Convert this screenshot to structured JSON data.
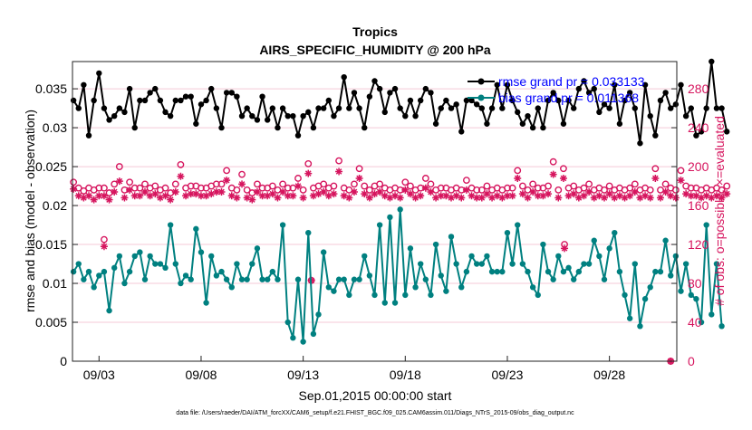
{
  "chart_data": {
    "type": "line",
    "title": "Tropics",
    "subtitle": "AIRS_SPECIFIC_HUMIDITY @ 200 hPa",
    "xlabel": "Sep.01,2015 00:00:00 start",
    "ylabel": "rmse and bias (model - observation)",
    "y2label": "# of obs: o=possible; ×=evaluated",
    "footer": "data file: /Users/raeder/DAI/ATM_forcXX/CAM6_setup/f.e21.FHIST_BGC.f09_025.CAM6assim.011/Diags_NTrS_2015-09/obs_diag_output.nc",
    "xlim": [
      1.7,
      31.3
    ],
    "ylim": [
      0,
      0.0385
    ],
    "y2lim": [
      0,
      308
    ],
    "x_ticks": [
      {
        "value": 3,
        "label": "09/03"
      },
      {
        "value": 8,
        "label": "09/08"
      },
      {
        "value": 13,
        "label": "09/13"
      },
      {
        "value": 18,
        "label": "09/18"
      },
      {
        "value": 23,
        "label": "09/23"
      },
      {
        "value": 28,
        "label": "09/28"
      }
    ],
    "y_ticks": [
      {
        "value": 0,
        "label": "0"
      },
      {
        "value": 0.005,
        "label": "0.005"
      },
      {
        "value": 0.01,
        "label": "0.01"
      },
      {
        "value": 0.015,
        "label": "0.015"
      },
      {
        "value": 0.02,
        "label": "0.02"
      },
      {
        "value": 0.025,
        "label": "0.025"
      },
      {
        "value": 0.03,
        "label": "0.03"
      },
      {
        "value": 0.035,
        "label": "0.035"
      }
    ],
    "y2_ticks": [
      {
        "value": 0,
        "label": "0"
      },
      {
        "value": 40,
        "label": "40"
      },
      {
        "value": 80,
        "label": "80"
      },
      {
        "value": 120,
        "label": "120"
      },
      {
        "value": 160,
        "label": "160"
      },
      {
        "value": 200,
        "label": "200"
      },
      {
        "value": 240,
        "label": "240"
      },
      {
        "value": 280,
        "label": "280"
      }
    ],
    "x_start": 1.75,
    "x_step": 0.25,
    "colors": {
      "rmse": "#000000",
      "bias": "#008080",
      "obs": "#d6155e",
      "legend_text": "#0000ff",
      "grid": "#f4c9d7",
      "axis": "#222222"
    },
    "series": [
      {
        "name": "rmse",
        "legend": "rmse grand pr = 0.033133",
        "values": [
          0.0335,
          0.0325,
          0.0355,
          0.029,
          0.0335,
          0.037,
          0.0325,
          0.031,
          0.0315,
          0.0325,
          0.032,
          0.035,
          0.03,
          0.0335,
          0.0335,
          0.0345,
          0.035,
          0.0335,
          0.032,
          0.0315,
          0.0335,
          0.0335,
          0.034,
          0.034,
          0.0305,
          0.033,
          0.0335,
          0.035,
          0.0325,
          0.03,
          0.0345,
          0.0345,
          0.034,
          0.0315,
          0.0325,
          0.0315,
          0.031,
          0.034,
          0.031,
          0.0325,
          0.03,
          0.0325,
          0.0315,
          0.0315,
          0.029,
          0.0315,
          0.032,
          0.03,
          0.0325,
          0.0325,
          0.0335,
          0.0315,
          0.0325,
          0.0365,
          0.0325,
          0.0345,
          0.0325,
          0.03,
          0.034,
          0.036,
          0.035,
          0.032,
          0.0345,
          0.035,
          0.0325,
          0.0315,
          0.0335,
          0.0315,
          0.0335,
          0.035,
          0.0345,
          0.0305,
          0.0325,
          0.0335,
          0.0325,
          0.033,
          0.0295,
          0.0335,
          0.0335,
          0.033,
          0.0325,
          0.0305,
          0.0325,
          0.0355,
          0.0325,
          0.0355,
          0.0335,
          0.032,
          0.0305,
          0.0315,
          0.03,
          0.0325,
          0.03,
          0.0335,
          0.0345,
          0.0335,
          0.0305,
          0.0335,
          0.0325,
          0.035,
          0.036,
          0.0345,
          0.035,
          0.032,
          0.033,
          0.0325,
          0.0355,
          0.0305,
          0.0335,
          0.0345,
          0.0325,
          0.028,
          0.0355,
          0.0315,
          0.029,
          0.0335,
          0.0345,
          0.0325,
          0.033,
          0.0355,
          0.0315,
          0.0325,
          0.029,
          0.0295,
          0.0325,
          0.0385,
          0.0325,
          0.0325,
          0.0295
        ]
      },
      {
        "name": "bias",
        "legend": "bias grand pr = 0.011368",
        "values": [
          0.0115,
          0.0125,
          0.0105,
          0.0115,
          0.0095,
          0.011,
          0.0115,
          0.0065,
          0.012,
          0.0135,
          0.01,
          0.0115,
          0.0135,
          0.014,
          0.0105,
          0.0135,
          0.0125,
          0.0125,
          0.012,
          0.0175,
          0.0125,
          0.01,
          0.011,
          0.0105,
          0.017,
          0.014,
          0.0075,
          0.0135,
          0.011,
          0.0115,
          0.0105,
          0.0095,
          0.0125,
          0.0105,
          0.0105,
          0.0125,
          0.0145,
          0.0105,
          0.0105,
          0.0115,
          0.0105,
          0.0175,
          0.005,
          0.003,
          0.0105,
          0.0025,
          0.0165,
          0.0035,
          0.006,
          0.014,
          0.0095,
          0.009,
          0.0105,
          0.0105,
          0.0085,
          0.0105,
          0.0105,
          0.0135,
          0.011,
          0.0085,
          0.0175,
          0.0075,
          0.0185,
          0.0075,
          0.0195,
          0.0085,
          0.0145,
          0.0095,
          0.0125,
          0.0105,
          0.0085,
          0.015,
          0.011,
          0.009,
          0.016,
          0.0125,
          0.0095,
          0.0115,
          0.0135,
          0.0125,
          0.0125,
          0.0135,
          0.0115,
          0.0115,
          0.0115,
          0.0165,
          0.0125,
          0.0175,
          0.0125,
          0.0115,
          0.0095,
          0.0085,
          0.015,
          0.0115,
          0.0105,
          0.0135,
          0.0115,
          0.012,
          0.0105,
          0.0115,
          0.0125,
          0.0125,
          0.0155,
          0.0135,
          0.0105,
          0.0145,
          0.0165,
          0.0115,
          0.0085,
          0.0055,
          0.0125,
          0.0045,
          0.008,
          0.0095,
          0.0115,
          0.0115,
          0.0155,
          0.011,
          0.0135,
          0.009,
          0.0125,
          0.0085,
          0.008,
          0.005,
          0.0175,
          0.006,
          0.0125,
          0.0045
        ]
      },
      {
        "name": "possible",
        "legend": "o=possible",
        "values": [
          184,
          178,
          175,
          178,
          176,
          178,
          178,
          173,
          182,
          200,
          176,
          184,
          178,
          178,
          182,
          178,
          180,
          176,
          178,
          173,
          182,
          202,
          178,
          180,
          180,
          178,
          178,
          180,
          182,
          182,
          196,
          178,
          176,
          192,
          176,
          173,
          182,
          178,
          178,
          180,
          176,
          182,
          178,
          178,
          188,
          176,
          203,
          178,
          180,
          182,
          178,
          180,
          206,
          178,
          176,
          182,
          198,
          180,
          176,
          180,
          182,
          178,
          176,
          178,
          176,
          184,
          180,
          176,
          178,
          188,
          182,
          176,
          178,
          178,
          176,
          178,
          176,
          186,
          178,
          176,
          176,
          180,
          176,
          178,
          176,
          178,
          178,
          196,
          180,
          176,
          182,
          178,
          178,
          180,
          205,
          176,
          198,
          178,
          180,
          176,
          178,
          182,
          176,
          178,
          176,
          180,
          176,
          178,
          176,
          178,
          182,
          176,
          178,
          176,
          198,
          176,
          182,
          178,
          176,
          196,
          180,
          178,
          178,
          176,
          178,
          176,
          178,
          176,
          180
        ]
      },
      {
        "name": "evaluated",
        "legend": "×=evaluated",
        "values": [
          177,
          170,
          168,
          170,
          166,
          170,
          170,
          166,
          174,
          185,
          168,
          176,
          170,
          170,
          174,
          170,
          172,
          168,
          170,
          166,
          174,
          190,
          170,
          172,
          172,
          170,
          170,
          172,
          174,
          174,
          186,
          170,
          168,
          182,
          168,
          166,
          174,
          170,
          170,
          172,
          168,
          174,
          170,
          170,
          180,
          168,
          193,
          170,
          172,
          174,
          170,
          172,
          195,
          170,
          168,
          174,
          188,
          172,
          168,
          172,
          174,
          170,
          168,
          170,
          168,
          176,
          172,
          168,
          170,
          178,
          174,
          168,
          170,
          170,
          168,
          170,
          168,
          176,
          170,
          168,
          168,
          172,
          168,
          170,
          168,
          170,
          170,
          188,
          172,
          168,
          174,
          170,
          170,
          172,
          192,
          168,
          188,
          170,
          172,
          168,
          170,
          174,
          168,
          170,
          168,
          172,
          168,
          170,
          168,
          170,
          174,
          168,
          170,
          168,
          188,
          168,
          174,
          170,
          168,
          186,
          172,
          170,
          170,
          168,
          170,
          168,
          170,
          168,
          172
        ]
      }
    ],
    "obs_extra_points": [
      {
        "x": 3.25,
        "y": 118,
        "kind": "evaluated"
      },
      {
        "x": 3.25,
        "y": 125,
        "kind": "possible"
      },
      {
        "x": 13.4,
        "y": 83,
        "kind": "evaluated"
      },
      {
        "x": 13.4,
        "y": 83,
        "kind": "possible"
      },
      {
        "x": 25.8,
        "y": 116,
        "kind": "evaluated"
      },
      {
        "x": 25.8,
        "y": 120,
        "kind": "possible"
      },
      {
        "x": 31.0,
        "y": 0,
        "kind": "evaluated"
      },
      {
        "x": 31.0,
        "y": 0,
        "kind": "possible"
      }
    ]
  }
}
